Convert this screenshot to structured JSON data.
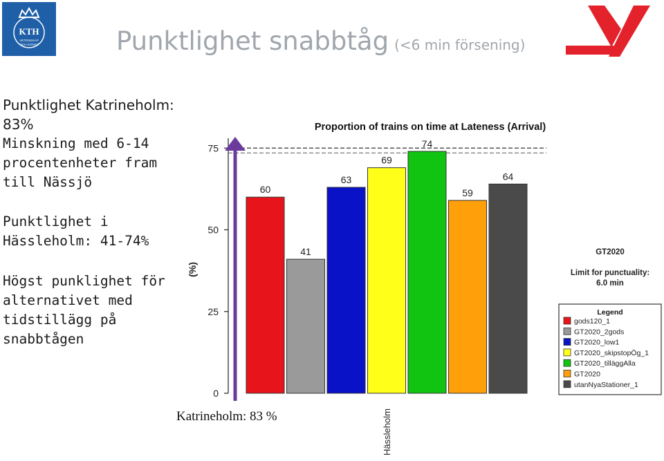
{
  "header": {
    "title": "Punktlighet snabbtåg",
    "subtitle": "(<6 min försening)",
    "logo_text": [
      "KTH",
      "VETENSKAP",
      "OCH KONST"
    ]
  },
  "bullets": [
    "Punktlighet Katrineholm: 83%",
    "Minskning med 6-14\nprocentenheter fram\ntill Nässjö",
    "Punktlighet i\nHässleholm: 41-74%",
    "Högst punklighet för\nalternativet med\ntidstillägg på\nsnabbtågen"
  ],
  "footnote": "Katrineholm: 83 %",
  "colors": {
    "accent": "#6a3a9c",
    "brand_red": "#e4222b",
    "kth_blue": "#1f5fa8"
  },
  "chart_data": {
    "type": "bar",
    "title": "Proportion of trains on time at Lateness (Arrival)",
    "ylabel": "(%)",
    "xlabel": "Hässleholm",
    "ylim": [
      0,
      78
    ],
    "yticks": [
      0,
      25,
      50,
      75
    ],
    "reference_line": 75,
    "categories": [
      "gods120_1",
      "GT2020_2gods",
      "GT2020_low1",
      "GT2020_skipstopÖg_1",
      "GT2020_tilläggAlla",
      "GT2020",
      "utanNyaStationer_1"
    ],
    "values": [
      60,
      41,
      63,
      69,
      74,
      59,
      64
    ],
    "colors": [
      "#e8141b",
      "#9a9a9a",
      "#0a12c8",
      "#ffff1a",
      "#12c412",
      "#ff9f0a",
      "#4a4a4a"
    ],
    "side_labels": [
      "GT2020",
      "Limit for punctuality:",
      "6.0 min"
    ],
    "legend_title": "Legend",
    "legend_position": "bottom-right"
  }
}
